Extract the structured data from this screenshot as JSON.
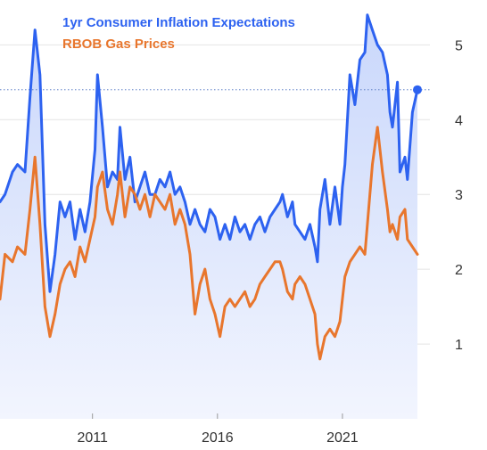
{
  "colors": {
    "inflation_line": "#2d62f0",
    "inflation_area_top": "#c9d7fb",
    "inflation_area_bottom": "#f2f5fe",
    "gas_line": "#e8762d",
    "grid": "#e4e4e4",
    "reference_line": "#5d7fc7",
    "tick_text": "#333333"
  },
  "chart_data": {
    "type": "line",
    "title": "",
    "xlabel": "",
    "ylabel": "",
    "legend_position": "top-left",
    "grid": "horizontal",
    "xlim": [
      2007.3,
      2024.5
    ],
    "ylim": [
      0,
      5.6
    ],
    "x_ticks": [
      2011,
      2016,
      2021
    ],
    "x_tick_labels": [
      "2011",
      "2016",
      "2021"
    ],
    "y_ticks": [
      1,
      2,
      3,
      4,
      5
    ],
    "y_tick_labels": [
      "1",
      "2",
      "3",
      "4",
      "5"
    ],
    "reference_line": {
      "y": 4.4,
      "style": "dotted"
    },
    "series": [
      {
        "name": "1yr Consumer Inflation Expectations",
        "color": "#2d62f0",
        "fill": true,
        "end_marker": true,
        "points": [
          [
            2007.3,
            2.9
          ],
          [
            2007.5,
            3.0
          ],
          [
            2007.8,
            3.3
          ],
          [
            2008.0,
            3.4
          ],
          [
            2008.3,
            3.3
          ],
          [
            2008.5,
            4.3
          ],
          [
            2008.7,
            5.2
          ],
          [
            2008.9,
            4.6
          ],
          [
            2009.1,
            2.6
          ],
          [
            2009.3,
            1.7
          ],
          [
            2009.5,
            2.2
          ],
          [
            2009.7,
            2.9
          ],
          [
            2009.9,
            2.7
          ],
          [
            2010.1,
            2.9
          ],
          [
            2010.3,
            2.4
          ],
          [
            2010.5,
            2.8
          ],
          [
            2010.7,
            2.5
          ],
          [
            2010.9,
            2.9
          ],
          [
            2011.1,
            3.6
          ],
          [
            2011.2,
            4.6
          ],
          [
            2011.4,
            3.9
          ],
          [
            2011.6,
            3.1
          ],
          [
            2011.8,
            3.3
          ],
          [
            2012.0,
            3.2
          ],
          [
            2012.1,
            3.9
          ],
          [
            2012.3,
            3.2
          ],
          [
            2012.5,
            3.5
          ],
          [
            2012.7,
            2.9
          ],
          [
            2012.9,
            3.1
          ],
          [
            2013.1,
            3.3
          ],
          [
            2013.3,
            3.0
          ],
          [
            2013.5,
            3.0
          ],
          [
            2013.7,
            3.2
          ],
          [
            2013.9,
            3.1
          ],
          [
            2014.1,
            3.3
          ],
          [
            2014.3,
            3.0
          ],
          [
            2014.5,
            3.1
          ],
          [
            2014.7,
            2.9
          ],
          [
            2014.9,
            2.6
          ],
          [
            2015.1,
            2.8
          ],
          [
            2015.3,
            2.6
          ],
          [
            2015.5,
            2.5
          ],
          [
            2015.7,
            2.8
          ],
          [
            2015.9,
            2.7
          ],
          [
            2016.1,
            2.4
          ],
          [
            2016.3,
            2.6
          ],
          [
            2016.5,
            2.4
          ],
          [
            2016.7,
            2.7
          ],
          [
            2016.9,
            2.5
          ],
          [
            2017.1,
            2.6
          ],
          [
            2017.3,
            2.4
          ],
          [
            2017.5,
            2.6
          ],
          [
            2017.7,
            2.7
          ],
          [
            2017.9,
            2.5
          ],
          [
            2018.1,
            2.7
          ],
          [
            2018.3,
            2.8
          ],
          [
            2018.5,
            2.9
          ],
          [
            2018.6,
            3.0
          ],
          [
            2018.8,
            2.7
          ],
          [
            2019.0,
            2.9
          ],
          [
            2019.1,
            2.6
          ],
          [
            2019.3,
            2.5
          ],
          [
            2019.5,
            2.4
          ],
          [
            2019.7,
            2.6
          ],
          [
            2019.9,
            2.3
          ],
          [
            2020.0,
            2.1
          ],
          [
            2020.1,
            2.8
          ],
          [
            2020.3,
            3.2
          ],
          [
            2020.5,
            2.6
          ],
          [
            2020.7,
            3.1
          ],
          [
            2020.9,
            2.6
          ],
          [
            2021.0,
            3.1
          ],
          [
            2021.1,
            3.4
          ],
          [
            2021.3,
            4.6
          ],
          [
            2021.5,
            4.2
          ],
          [
            2021.7,
            4.8
          ],
          [
            2021.9,
            4.9
          ],
          [
            2022.0,
            5.4
          ],
          [
            2022.2,
            5.2
          ],
          [
            2022.4,
            5.0
          ],
          [
            2022.6,
            4.9
          ],
          [
            2022.8,
            4.6
          ],
          [
            2022.9,
            4.1
          ],
          [
            2023.0,
            3.9
          ],
          [
            2023.2,
            4.5
          ],
          [
            2023.3,
            3.3
          ],
          [
            2023.5,
            3.5
          ],
          [
            2023.6,
            3.2
          ],
          [
            2023.8,
            4.1
          ],
          [
            2024.0,
            4.4
          ]
        ]
      },
      {
        "name": "RBOB Gas Prices",
        "color": "#e8762d",
        "fill": false,
        "end_marker": false,
        "points": [
          [
            2007.3,
            1.6
          ],
          [
            2007.5,
            2.2
          ],
          [
            2007.8,
            2.1
          ],
          [
            2008.0,
            2.3
          ],
          [
            2008.3,
            2.2
          ],
          [
            2008.5,
            2.8
          ],
          [
            2008.7,
            3.5
          ],
          [
            2008.9,
            2.6
          ],
          [
            2009.1,
            1.5
          ],
          [
            2009.3,
            1.1
          ],
          [
            2009.5,
            1.4
          ],
          [
            2009.7,
            1.8
          ],
          [
            2009.9,
            2.0
          ],
          [
            2010.1,
            2.1
          ],
          [
            2010.3,
            1.9
          ],
          [
            2010.5,
            2.3
          ],
          [
            2010.7,
            2.1
          ],
          [
            2010.9,
            2.4
          ],
          [
            2011.1,
            2.7
          ],
          [
            2011.2,
            3.1
          ],
          [
            2011.4,
            3.3
          ],
          [
            2011.6,
            2.8
          ],
          [
            2011.8,
            2.6
          ],
          [
            2012.0,
            3.0
          ],
          [
            2012.1,
            3.3
          ],
          [
            2012.3,
            2.7
          ],
          [
            2012.5,
            3.1
          ],
          [
            2012.7,
            3.0
          ],
          [
            2012.9,
            2.8
          ],
          [
            2013.1,
            3.0
          ],
          [
            2013.3,
            2.7
          ],
          [
            2013.5,
            3.0
          ],
          [
            2013.7,
            2.9
          ],
          [
            2013.9,
            2.8
          ],
          [
            2014.1,
            3.0
          ],
          [
            2014.3,
            2.6
          ],
          [
            2014.5,
            2.8
          ],
          [
            2014.7,
            2.6
          ],
          [
            2014.9,
            2.2
          ],
          [
            2015.1,
            1.4
          ],
          [
            2015.3,
            1.8
          ],
          [
            2015.5,
            2.0
          ],
          [
            2015.7,
            1.6
          ],
          [
            2015.9,
            1.4
          ],
          [
            2016.1,
            1.1
          ],
          [
            2016.3,
            1.5
          ],
          [
            2016.5,
            1.6
          ],
          [
            2016.7,
            1.5
          ],
          [
            2016.9,
            1.6
          ],
          [
            2017.1,
            1.7
          ],
          [
            2017.3,
            1.5
          ],
          [
            2017.5,
            1.6
          ],
          [
            2017.7,
            1.8
          ],
          [
            2017.9,
            1.9
          ],
          [
            2018.1,
            2.0
          ],
          [
            2018.3,
            2.1
          ],
          [
            2018.5,
            2.1
          ],
          [
            2018.6,
            2.0
          ],
          [
            2018.8,
            1.7
          ],
          [
            2019.0,
            1.6
          ],
          [
            2019.1,
            1.8
          ],
          [
            2019.3,
            1.9
          ],
          [
            2019.5,
            1.8
          ],
          [
            2019.7,
            1.6
          ],
          [
            2019.9,
            1.4
          ],
          [
            2020.0,
            1.0
          ],
          [
            2020.1,
            0.8
          ],
          [
            2020.3,
            1.1
          ],
          [
            2020.5,
            1.2
          ],
          [
            2020.7,
            1.1
          ],
          [
            2020.9,
            1.3
          ],
          [
            2021.0,
            1.6
          ],
          [
            2021.1,
            1.9
          ],
          [
            2021.3,
            2.1
          ],
          [
            2021.5,
            2.2
          ],
          [
            2021.7,
            2.3
          ],
          [
            2021.9,
            2.2
          ],
          [
            2022.0,
            2.6
          ],
          [
            2022.2,
            3.4
          ],
          [
            2022.4,
            3.9
          ],
          [
            2022.6,
            3.3
          ],
          [
            2022.8,
            2.8
          ],
          [
            2022.9,
            2.5
          ],
          [
            2023.0,
            2.6
          ],
          [
            2023.2,
            2.4
          ],
          [
            2023.3,
            2.7
          ],
          [
            2023.5,
            2.8
          ],
          [
            2023.6,
            2.4
          ],
          [
            2023.8,
            2.3
          ],
          [
            2024.0,
            2.2
          ]
        ]
      }
    ]
  }
}
